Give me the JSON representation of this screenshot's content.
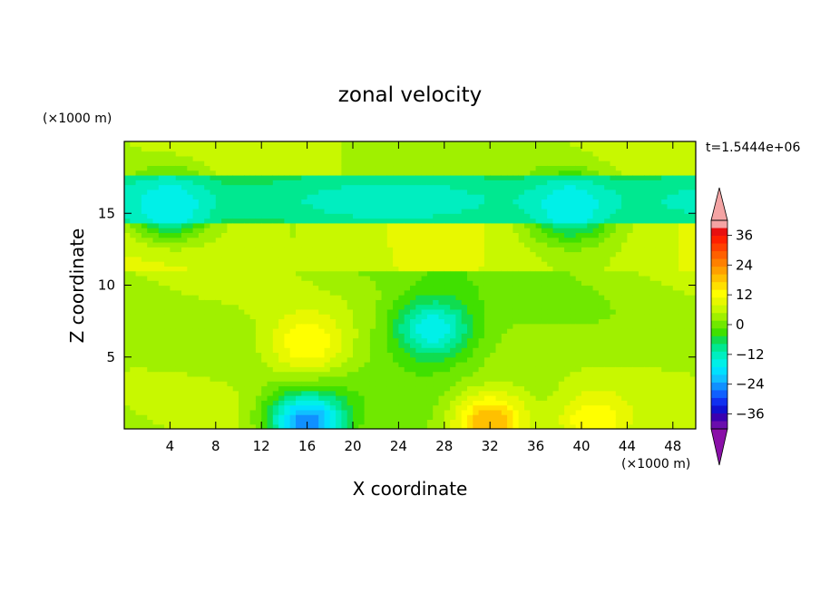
{
  "chart_data": {
    "type": "heatmap",
    "title": "zonal velocity",
    "xlabel": "X coordinate",
    "ylabel": "Z coordinate",
    "x_units": "(×1000 m)",
    "y_units": "(×1000 m)",
    "time_label": "t=1.5444e+06",
    "xlim": [
      0,
      50
    ],
    "ylim": [
      0,
      20
    ],
    "x_ticks": [
      4,
      8,
      12,
      16,
      20,
      24,
      28,
      32,
      36,
      40,
      44,
      48
    ],
    "y_ticks": [
      5,
      10,
      15
    ],
    "grid": false,
    "legend_placement": "right",
    "colorbar": {
      "levels": [
        -42,
        -39,
        -36,
        -33,
        -30,
        -27,
        -24,
        -21,
        -18,
        -15,
        -12,
        -9,
        -6,
        -3,
        0,
        3,
        6,
        9,
        12,
        15,
        18,
        21,
        24,
        27,
        30,
        33,
        36,
        39,
        42
      ],
      "tick_labels": [
        "36",
        "24",
        "12",
        "0",
        "−12",
        "−24",
        "−36"
      ],
      "tick_values": [
        36,
        24,
        12,
        0,
        -12,
        -24,
        -36
      ],
      "colors": [
        "#6a0dad",
        "#3a00b0",
        "#1010d0",
        "#1030f0",
        "#1060ff",
        "#1090ff",
        "#10c0ff",
        "#00e0ff",
        "#00f0e8",
        "#00eec0",
        "#00e890",
        "#10dc50",
        "#40e000",
        "#70e800",
        "#a0f000",
        "#c8f800",
        "#e8f800",
        "#ffff00",
        "#ffe000",
        "#ffc000",
        "#ffa000",
        "#ff8000",
        "#ff6000",
        "#ff4000",
        "#ff2000",
        "#e81010",
        "#f4a4a4"
      ],
      "over_color": "#f4a4a4",
      "under_color": "#8a10a8"
    },
    "field_description_bands": [
      {
        "z_range": [
          17.5,
          20
        ],
        "u_range": [
          0,
          6
        ]
      },
      {
        "z_range": [
          14.5,
          17.5
        ],
        "u_range": [
          -12,
          -6
        ]
      },
      {
        "z_range": [
          11,
          14.5
        ],
        "u_range": [
          3,
          9
        ]
      },
      {
        "z_range": [
          0,
          11
        ],
        "u_range": [
          -6,
          6
        ]
      }
    ],
    "features": [
      {
        "x": 16,
        "z": 0.5,
        "u": -27
      },
      {
        "x": 32,
        "z": 0.5,
        "u": 18
      },
      {
        "x": 41,
        "z": 0.5,
        "u": 12
      },
      {
        "x": 16,
        "z": 6,
        "u": 12
      },
      {
        "x": 4,
        "z": 15.5,
        "u": -18
      },
      {
        "x": 39,
        "z": 15.5,
        "u": -18
      },
      {
        "x": 27,
        "z": 7,
        "u": -18
      }
    ]
  }
}
